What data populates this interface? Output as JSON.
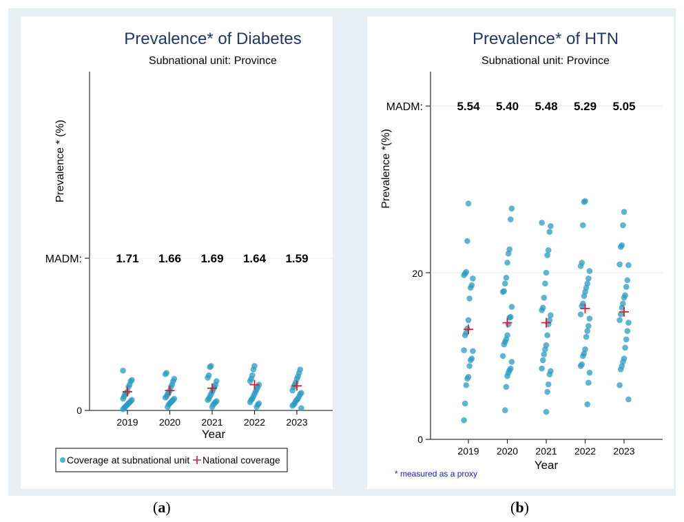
{
  "panels": [
    {
      "id": "a",
      "title": "Prevalence* of Diabetes",
      "subtitle": "Subnational unit: Province",
      "ylabel": "Prevalence * (%)",
      "xlabel": "Year",
      "y_ticks": [
        "0"
      ],
      "madm_label": "MADM:",
      "madm_values": [
        "1.71",
        "1.66",
        "1.69",
        "1.64",
        "1.59"
      ],
      "legend": {
        "subnational": "Coverage at subnational unit",
        "national": "National coverage"
      },
      "caption": "a"
    },
    {
      "id": "b",
      "title": "Prevalence* of HTN",
      "subtitle": "Subnational unit: Province",
      "ylabel": "Prevalence *(%)",
      "xlabel": "Year",
      "y_ticks": [
        "20",
        "0"
      ],
      "madm_label": "MADM:",
      "madm_values": [
        "5.54",
        "5.40",
        "5.48",
        "5.29",
        "5.05"
      ],
      "footnote": "* measured as a proxy",
      "caption": "b"
    }
  ],
  "colors": {
    "dot": "#2a9bc4",
    "national": "#d0202a",
    "title": "#1f3864",
    "frame": "#e6eff3"
  },
  "chart_data": [
    {
      "type": "scatter",
      "title": "Prevalence* of Diabetes",
      "xlabel": "Year",
      "ylabel": "Prevalence * (%)",
      "categories": [
        "2019",
        "2020",
        "2021",
        "2022",
        "2023"
      ],
      "ylim": [
        0,
        26
      ],
      "madm": [
        1.71,
        1.66,
        1.69,
        1.64,
        1.59
      ],
      "grid": true,
      "legend": "bottom",
      "series": [
        {
          "name": "Coverage at subnational unit",
          "values": [
            [
              0.1,
              0.2,
              0.3,
              0.4,
              0.5,
              0.6,
              0.7,
              0.8,
              0.9,
              1.0,
              1.2,
              1.4,
              1.5,
              1.6,
              2.0,
              2.2,
              2.5,
              2.6,
              3.4
            ],
            [
              0.3,
              0.5,
              0.6,
              0.7,
              0.8,
              0.9,
              1.0,
              1.1,
              1.2,
              1.4,
              1.5,
              1.7,
              2.0,
              2.2,
              2.5,
              2.7,
              3.1,
              3.2
            ],
            [
              0.3,
              0.5,
              0.6,
              0.7,
              0.8,
              0.9,
              1.0,
              1.2,
              1.4,
              1.6,
              1.8,
              2.0,
              2.2,
              2.5,
              2.8,
              3.0,
              3.7,
              3.8
            ],
            [
              0.3,
              0.5,
              0.6,
              0.7,
              0.9,
              1.0,
              1.2,
              1.4,
              1.6,
              1.8,
              2.0,
              2.2,
              2.5,
              2.7,
              3.0,
              3.5,
              3.8
            ],
            [
              0.2,
              0.4,
              0.5,
              0.6,
              0.8,
              0.9,
              1.0,
              1.2,
              1.4,
              1.5,
              1.7,
              2.0,
              2.2,
              2.4,
              2.7,
              2.9,
              3.2,
              3.5
            ]
          ]
        },
        {
          "name": "National coverage",
          "values": [
            1.6,
            1.7,
            1.9,
            2.2,
            2.1
          ]
        }
      ]
    },
    {
      "type": "scatter",
      "title": "Prevalence* of HTN",
      "xlabel": "Year",
      "ylabel": "Prevalence *(%)",
      "categories": [
        "2019",
        "2020",
        "2021",
        "2022",
        "2023"
      ],
      "ylim": [
        0,
        40
      ],
      "madm": [
        5.54,
        5.4,
        5.48,
        5.29,
        5.05
      ],
      "grid": true,
      "series": [
        {
          "name": "Coverage at subnational unit",
          "values": [
            [
              2.3,
              4.3,
              6.5,
              7.3,
              7.5,
              8.8,
              9.5,
              9.7,
              10.6,
              10.7,
              12.5,
              12.8,
              13.3,
              14.3,
              16.9,
              18.2,
              18.5,
              19.3,
              19.7,
              19.9,
              20.1,
              23.8,
              28.3
            ],
            [
              3.5,
              6.3,
              7.6,
              8.0,
              8.3,
              8.5,
              9.3,
              10.0,
              11.4,
              11.7,
              12.0,
              12.5,
              13.8,
              14.6,
              14.7,
              15.9,
              17.7,
              17.8,
              18.7,
              19.4,
              21.2,
              22.3,
              22.8,
              26.4,
              27.7
            ],
            [
              3.3,
              5.7,
              6.6,
              7.8,
              8.2,
              8.5,
              9.5,
              10.2,
              10.8,
              11.3,
              12.5,
              13.8,
              14.3,
              14.9,
              15.5,
              15.8,
              17.0,
              18.7,
              20.0,
              22.1,
              22.7,
              24.9,
              25.6,
              26.0
            ],
            [
              4.2,
              6.8,
              8.0,
              8.8,
              9.0,
              10.0,
              10.3,
              10.8,
              12.3,
              13.0,
              13.6,
              14.5,
              15.0,
              16.0,
              16.3,
              17.2,
              17.7,
              18.2,
              18.7,
              19.3,
              20.2,
              20.8,
              21.2,
              25.7,
              28.5,
              28.6
            ],
            [
              4.8,
              6.5,
              8.4,
              8.8,
              9.3,
              9.7,
              11.0,
              12.0,
              13.0,
              14.0,
              14.3,
              15.0,
              15.8,
              16.3,
              17.0,
              17.3,
              18.3,
              19.1,
              20.9,
              21.0,
              23.1,
              23.3,
              25.7,
              27.3
            ]
          ]
        },
        {
          "name": "National coverage",
          "values": [
            13.2,
            14.0,
            14.0,
            15.7,
            15.3
          ]
        }
      ]
    }
  ]
}
